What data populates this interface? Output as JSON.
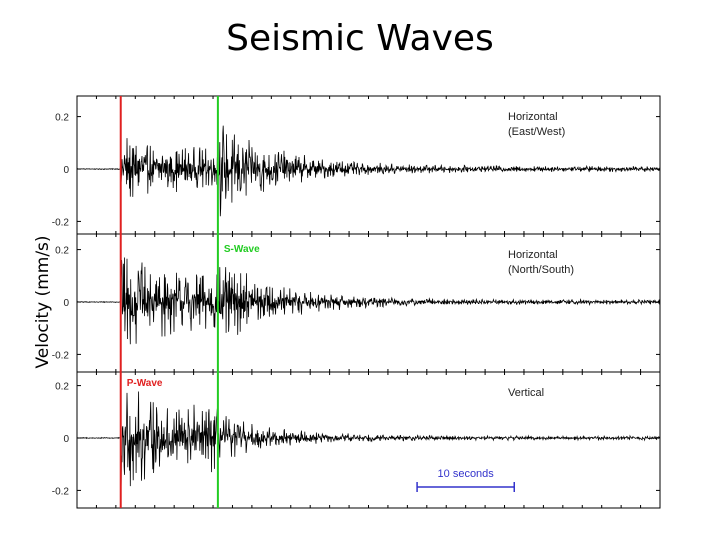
{
  "title": "Seismic Waves",
  "chart_data": {
    "type": "line",
    "ylabel": "Velocity (mm/s)",
    "ylim": [
      -0.3,
      0.3
    ],
    "duration_s": 60,
    "panels": [
      {
        "label_lines": [
          "Horizontal",
          "(East/West)"
        ],
        "yticks": [
          {
            "value": 0.2,
            "label": "0.2"
          },
          {
            "value": 0,
            "label": "0"
          },
          {
            "value": -0.2,
            "label": "-0.2"
          }
        ],
        "onset_amplitude": 0.15,
        "s_amplitude": 0.19,
        "tail_amplitude": 0.012
      },
      {
        "label_lines": [
          "Horizontal",
          "(North/South)"
        ],
        "yticks": [
          {
            "value": 0.2,
            "label": "0.2"
          },
          {
            "value": 0,
            "label": "0"
          },
          {
            "value": -0.2,
            "label": "-0.2"
          }
        ],
        "onset_amplitude": 0.22,
        "s_amplitude": 0.17,
        "tail_amplitude": 0.01
      },
      {
        "label_lines": [
          "Vertical"
        ],
        "yticks": [
          {
            "value": 0.2,
            "label": "0.2"
          },
          {
            "value": 0,
            "label": "0"
          },
          {
            "value": -0.2,
            "label": "-0.2"
          }
        ],
        "onset_amplitude": 0.24,
        "s_amplitude": 0.09,
        "tail_amplitude": 0.008
      }
    ],
    "markers": [
      {
        "name": "P-Wave",
        "time_s": 4.5,
        "color": "#e02020"
      },
      {
        "name": "S-Wave",
        "time_s": 14.5,
        "color": "#22cc22"
      }
    ],
    "scale_bar": {
      "label": "10 seconds",
      "start_s": 35,
      "length_s": 10,
      "color": "#3333cc"
    }
  }
}
